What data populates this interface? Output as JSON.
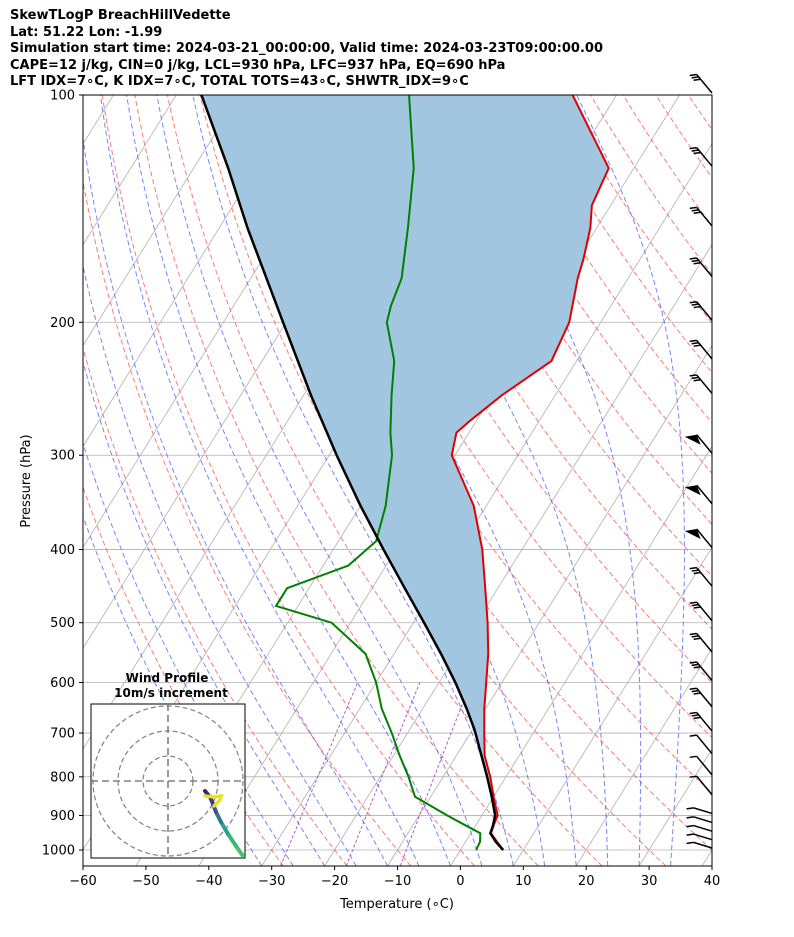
{
  "header": {
    "lines": [
      "SkewTLogP BreachHillVedette",
      "Lat: 51.22   Lon: -1.99",
      "Simulation start time: 2024-03-21_00:00:00, Valid time: 2024-03-23T09:00:00.00",
      "CAPE=12 j/kg, CIN=0 j/kg, LCL=930 hPa, LFC=937 hPa, EQ=690 hPa",
      "LFT IDX=7∘C, K IDX=7∘C, TOTAL TOTS=43∘C, SHWTR_IDX=9∘C"
    ]
  },
  "chart_data": {
    "type": "line",
    "subtype": "skew-T log-P",
    "xlabel": "Temperature (∘C)",
    "ylabel": "Pressure (hPa)",
    "xlim": [
      -60,
      40
    ],
    "ylim": [
      1050,
      100
    ],
    "y_scale": "log",
    "x_ticks": [
      -60,
      -50,
      -40,
      -30,
      -20,
      -10,
      0,
      10,
      20,
      30,
      40
    ],
    "x_tick_labels": [
      "−60",
      "−50",
      "−40",
      "−30",
      "−20",
      "−10",
      "0",
      "10",
      "20",
      "30",
      "40"
    ],
    "y_ticks": [
      1000,
      900,
      800,
      700,
      600,
      500,
      400,
      300,
      200,
      100
    ],
    "y_tick_labels": [
      "1000",
      "900",
      "800",
      "700",
      "600",
      "500",
      "400",
      "300",
      "200",
      "100"
    ],
    "grid": true,
    "colors": {
      "temperature": "#e00000",
      "dewpoint": "#008000",
      "parcel": "#000000",
      "cape_fill": "#a3c6e0",
      "dry_adiabat": "#ff6060",
      "moist_adiabat": "#4a5cff",
      "mixing_ratio": "#a040c0",
      "isotherm": "#b0b0b0"
    },
    "series": [
      {
        "pressure": [
          1000,
          975,
          950,
          925,
          900,
          850,
          800,
          750,
          700,
          650,
          600,
          550,
          500,
          450,
          400,
          350,
          300,
          280,
          270,
          250,
          225,
          200,
          175,
          165,
          150,
          140,
          125,
          100
        ],
        "temperature": [
          6.8,
          5.0,
          3.2,
          2.8,
          2.5,
          0.0,
          -2.5,
          -5.5,
          -7.8,
          -10.2,
          -12.5,
          -15.0,
          -18.2,
          -22.0,
          -26.3,
          -32.0,
          -40.5,
          -42.0,
          -41.0,
          -38.5,
          -34.0,
          -35.0,
          -38.0,
          -39.0,
          -41.0,
          -43.0,
          -44.0,
          -57.0
        ]
      },
      {
        "pressure": [
          1000,
          975,
          950,
          925,
          900,
          850,
          800,
          750,
          700,
          650,
          600,
          550,
          500,
          475,
          450,
          420,
          390,
          350,
          300,
          280,
          250,
          225,
          200,
          190,
          175,
          150,
          125,
          100
        ],
        "dewpoint": [
          2.5,
          2.3,
          1.5,
          -2.0,
          -5.5,
          -12.5,
          -15.5,
          -19.0,
          -22.5,
          -26.5,
          -30.0,
          -34.5,
          -43.0,
          -53.5,
          -53.5,
          -46.0,
          -44.0,
          -46.0,
          -50.0,
          -52.5,
          -56.0,
          -59.0,
          -64.0,
          -65.0,
          -66.0,
          -70.0,
          -75.0,
          -83.0
        ]
      },
      {
        "pressure": [
          1000,
          975,
          950,
          930,
          900,
          850,
          800,
          750,
          700,
          690,
          650,
          600,
          550,
          500,
          450,
          400,
          350,
          300,
          250,
          200,
          150,
          125,
          100
        ],
        "parcel": [
          6.8,
          4.8,
          3.1,
          2.8,
          2.1,
          -0.3,
          -3.0,
          -6.0,
          -9.2,
          -9.9,
          -13.0,
          -17.4,
          -22.5,
          -28.3,
          -34.8,
          -42.0,
          -50.0,
          -58.8,
          -68.8,
          -80.5,
          -95.5,
          -104.5,
          -116.0
        ]
      }
    ],
    "wind_profile": {
      "title": "Wind Profile",
      "subtitle": "10m/s increment"
    }
  }
}
